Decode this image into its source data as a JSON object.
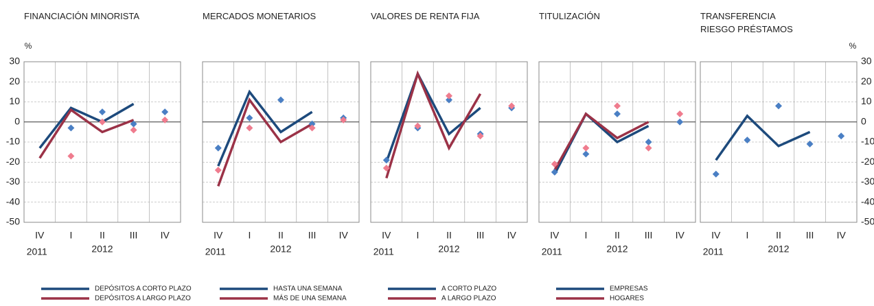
{
  "chart_data": [
    {
      "type": "line",
      "title": "FINANCIACIÓN MINORISTA",
      "y_unit": "%",
      "categories": [
        "IV",
        "I",
        "II",
        "III",
        "IV"
      ],
      "years": [
        "2011",
        "2012"
      ],
      "ylim": [
        -50,
        30
      ],
      "yticks": [
        -50,
        -40,
        -30,
        -20,
        -10,
        0,
        10,
        20,
        30
      ],
      "grid": true,
      "series": [
        {
          "name": "DEPÓSITOS A CORTO PLAZO",
          "color": "#1d4a7c",
          "point_color": "#4a7fc4",
          "values": [
            -13,
            7,
            0,
            9,
            null
          ],
          "points": [
            null,
            -3,
            5,
            -1,
            5
          ]
        },
        {
          "name": "DEPÓSITOS A LARGO PLAZO",
          "color": "#9b3247",
          "point_color": "#ef7c8e",
          "values": [
            -18,
            6,
            -5,
            1,
            null
          ],
          "points": [
            null,
            -17,
            0,
            -4,
            1
          ]
        }
      ]
    },
    {
      "type": "line",
      "title": "MERCADOS MONETARIOS",
      "categories": [
        "IV",
        "I",
        "II",
        "III",
        "IV"
      ],
      "years": [
        "2011",
        "2012"
      ],
      "ylim": [
        -50,
        30
      ],
      "yticks": [
        -50,
        -40,
        -30,
        -20,
        -10,
        0,
        10,
        20,
        30
      ],
      "grid": true,
      "series": [
        {
          "name": "HASTA UNA SEMANA",
          "color": "#1d4a7c",
          "point_color": "#4a7fc4",
          "values": [
            -22,
            15,
            -5,
            5,
            null
          ],
          "points": [
            -13,
            2,
            11,
            -1,
            2
          ]
        },
        {
          "name": "MÁS DE UNA SEMANA",
          "color": "#9b3247",
          "point_color": "#ef7c8e",
          "values": [
            -32,
            11,
            -10,
            -1,
            null
          ],
          "points": [
            -24,
            -3,
            null,
            -3,
            1
          ]
        }
      ]
    },
    {
      "type": "line",
      "title": "VALORES DE RENTA FIJA",
      "categories": [
        "IV",
        "I",
        "II",
        "III",
        "IV"
      ],
      "years": [
        "2011",
        "2012"
      ],
      "ylim": [
        -50,
        30
      ],
      "yticks": [
        -50,
        -40,
        -30,
        -20,
        -10,
        0,
        10,
        20,
        30
      ],
      "grid": true,
      "series": [
        {
          "name": "A CORTO PLAZO",
          "color": "#1d4a7c",
          "point_color": "#4a7fc4",
          "values": [
            -20,
            24,
            -6,
            7,
            null
          ],
          "points": [
            -19,
            -3,
            11,
            -6,
            7
          ]
        },
        {
          "name": "A LARGO PLAZO",
          "color": "#9b3247",
          "point_color": "#ef7c8e",
          "values": [
            -28,
            24,
            -13,
            14,
            null
          ],
          "points": [
            -23,
            -2,
            13,
            -7,
            8
          ]
        }
      ]
    },
    {
      "type": "line",
      "title": "TITULIZACIÓN",
      "categories": [
        "IV",
        "I",
        "II",
        "III",
        "IV"
      ],
      "years": [
        "2011",
        "2012"
      ],
      "ylim": [
        -50,
        30
      ],
      "yticks": [
        -50,
        -40,
        -30,
        -20,
        -10,
        0,
        10,
        20,
        30
      ],
      "grid": true,
      "series": [
        {
          "name": "EMPRESAS",
          "color": "#1d4a7c",
          "point_color": "#4a7fc4",
          "values": [
            -26,
            4,
            -10,
            -2,
            null
          ],
          "points": [
            -25,
            -16,
            4,
            -10,
            0
          ]
        },
        {
          "name": "HOGARES",
          "color": "#9b3247",
          "point_color": "#ef7c8e",
          "values": [
            -24,
            4,
            -8,
            0,
            null
          ],
          "points": [
            -21,
            -13,
            8,
            -13,
            4
          ]
        }
      ]
    },
    {
      "type": "line",
      "title": "TRANSFERENCIA RIESGO PRÉSTAMOS",
      "y_unit": "%",
      "categories": [
        "IV",
        "I",
        "II",
        "III",
        "IV"
      ],
      "years": [
        "2011",
        "2012"
      ],
      "ylim": [
        -50,
        30
      ],
      "yticks": [
        -50,
        -40,
        -30,
        -20,
        -10,
        0,
        10,
        20,
        30
      ],
      "grid": true,
      "series": [
        {
          "color": "#1d4a7c",
          "point_color": "#4a7fc4",
          "values": [
            -19,
            3,
            -12,
            -5,
            null
          ],
          "points": [
            -26,
            -9,
            8,
            -11,
            -7
          ]
        }
      ]
    }
  ]
}
